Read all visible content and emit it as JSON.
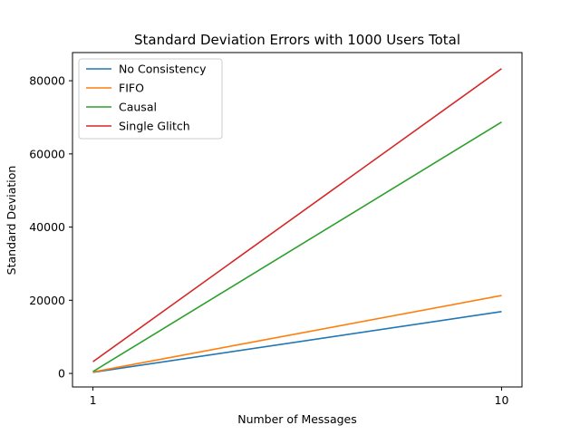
{
  "chart_data": {
    "type": "line",
    "title": "Standard Deviation Errors with 1000 Users Total",
    "xlabel": "Number of Messages",
    "ylabel": "Standard Deviation",
    "x": [
      1,
      10
    ],
    "x_ticks": [
      1,
      10
    ],
    "x_tick_labels": [
      "1",
      "10"
    ],
    "xlim": [
      0.55,
      10.45
    ],
    "y_ticks": [
      0,
      20000,
      40000,
      60000,
      80000
    ],
    "y_tick_labels": [
      "0",
      "20000",
      "40000",
      "60000",
      "80000"
    ],
    "ylim": [
      -3700,
      87700
    ],
    "grid": false,
    "legend_position": "top-left",
    "series": [
      {
        "name": "No Consistency",
        "color": "#1f77b4",
        "values": [
          300,
          16900
        ]
      },
      {
        "name": "FIFO",
        "color": "#ff7f0e",
        "values": [
          400,
          21300
        ]
      },
      {
        "name": "Causal",
        "color": "#2ca02c",
        "values": [
          500,
          68700
        ]
      },
      {
        "name": "Single Glitch",
        "color": "#d62728",
        "values": [
          3200,
          83300
        ]
      }
    ]
  }
}
